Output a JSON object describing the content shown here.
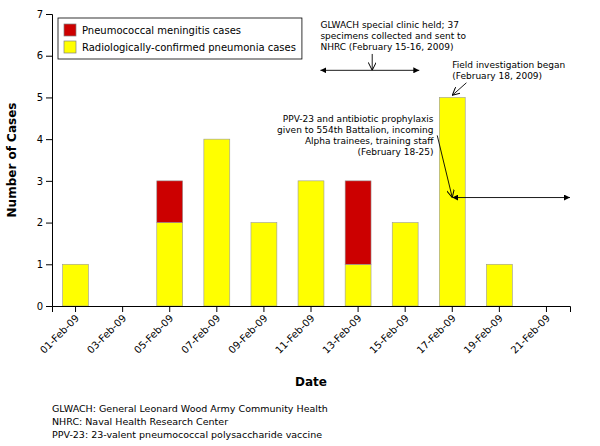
{
  "chart_data": {
    "type": "bar",
    "stacked": true,
    "categories": [
      "01-Feb-09",
      "03-Feb-09",
      "05-Feb-09",
      "07-Feb-09",
      "09-Feb-09",
      "11-Feb-09",
      "13-Feb-09",
      "15-Feb-09",
      "17-Feb-09",
      "19-Feb-09",
      "21-Feb-09"
    ],
    "series": [
      {
        "name": "Radiologically-confirmed pneumonia cases",
        "color": "#FFFF00",
        "values": [
          1,
          0,
          2,
          4,
          2,
          3,
          1,
          2,
          5,
          1,
          0
        ]
      },
      {
        "name": "Pneumococcal meningitis cases",
        "color": "#CC0000",
        "values": [
          0,
          0,
          1,
          0,
          0,
          0,
          2,
          0,
          0,
          0,
          0
        ]
      }
    ],
    "xlabel": "Date",
    "ylabel": "Number of Cases",
    "ylim": [
      0,
      7
    ],
    "yticks": [
      0,
      1,
      2,
      3,
      4,
      5,
      6,
      7
    ],
    "grid": false,
    "legend": "upper left",
    "annotations": [
      "GLWACH special clinic held; 37\nspecimens collected and sent to\nNHRC (February 15-16, 2009)",
      "Field investigation began\n(February 18, 2009)",
      "PPV-23 and antibiotic prophylaxis\ngiven to 554th Battalion, incoming\nAlpha trainees, training staff\n(February 18-25)"
    ],
    "footnotes": [
      "GLWACH:  General Leonard Wood Army Community Health",
      "NHRC:  Naval Health Research Center",
      "PPV-23:  23-valent pneumococcal polysaccharide vaccine"
    ]
  }
}
